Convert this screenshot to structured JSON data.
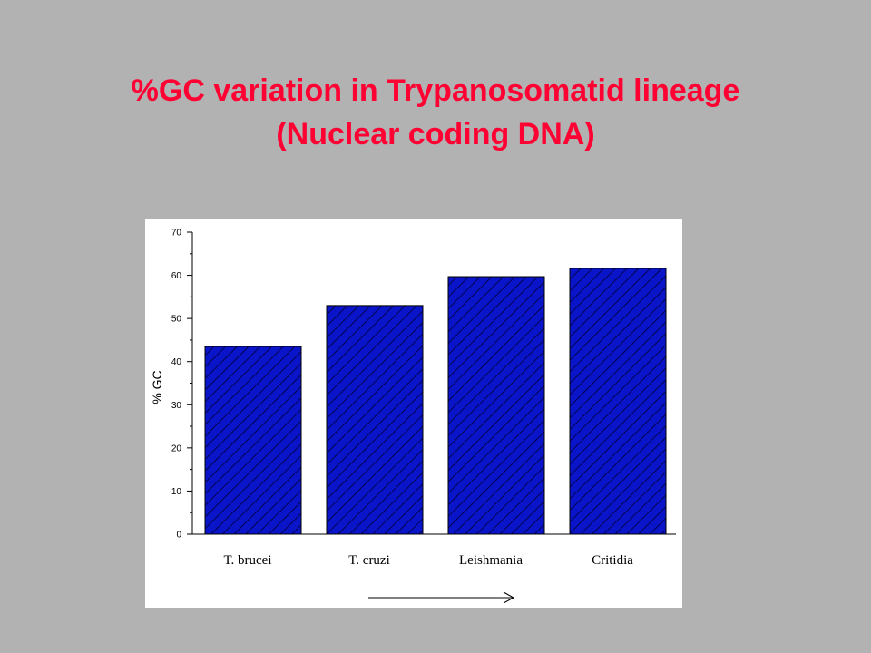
{
  "slide": {
    "title_line1": "%GC variation in Trypanosomatid lineage",
    "title_line2": "(Nuclear coding DNA)"
  },
  "chart_data": {
    "type": "bar",
    "title": "",
    "xlabel": "",
    "ylabel": "% GC",
    "categories": [
      "T. brucei",
      "T. cruzi",
      "Leishmania",
      "Critidia"
    ],
    "values": [
      43.5,
      53,
      59.7,
      61.6
    ],
    "ylim": [
      0,
      70
    ],
    "yticks": [
      0,
      10,
      20,
      30,
      40,
      50,
      60,
      70
    ],
    "grid": false,
    "legend": "none",
    "bar_color": "#0a14c8",
    "bar_hatch_color": "#000033",
    "arrow_direction": "right"
  }
}
